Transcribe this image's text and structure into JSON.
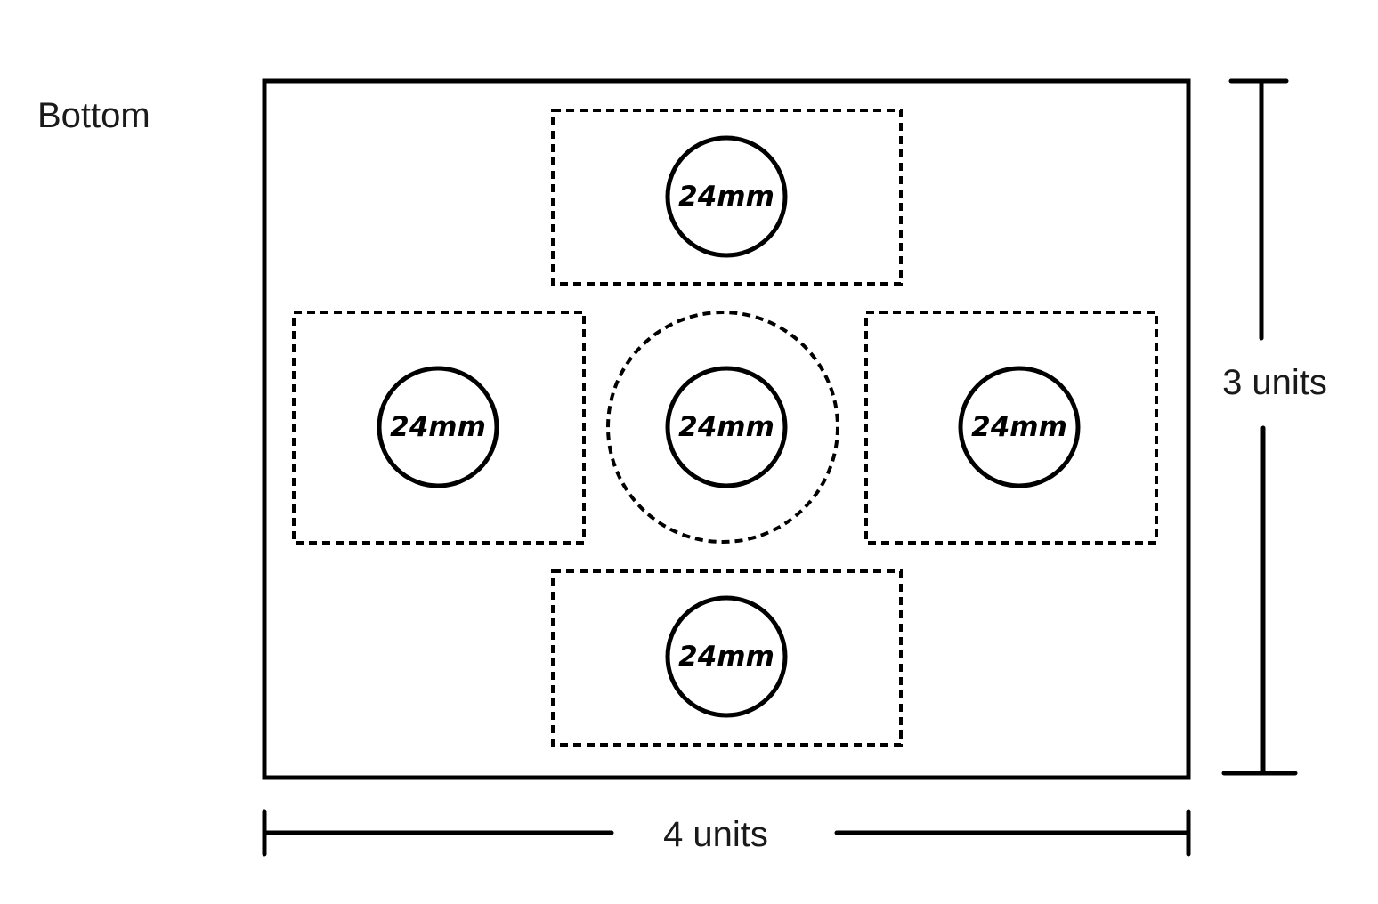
{
  "view_label": "Bottom",
  "width_label": "4 units",
  "height_label": "3 units",
  "holes": [
    {
      "label": "24mm"
    },
    {
      "label": "24mm"
    },
    {
      "label": "24mm"
    },
    {
      "label": "24mm"
    },
    {
      "label": "24mm"
    }
  ]
}
